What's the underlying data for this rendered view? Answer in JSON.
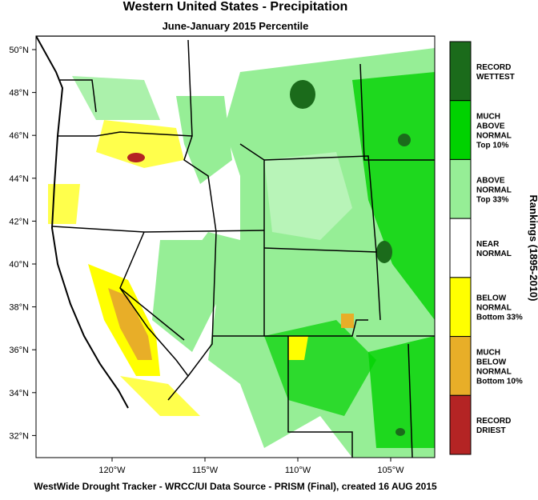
{
  "map": {
    "title": "Western United States - Precipitation",
    "subtitle": "June-January 2015 Percentile",
    "lat_labels": [
      "50°N",
      "48°N",
      "46°N",
      "44°N",
      "42°N",
      "40°N",
      "38°N",
      "36°N",
      "34°N",
      "32°N"
    ],
    "lon_labels": [
      "120°W",
      "115°W",
      "110°W",
      "105°W"
    ],
    "legend": {
      "title": "Rankings (1895-2010)",
      "items": [
        {
          "lines": [
            "RECORD",
            "WETTEST"
          ],
          "color": "#1b6b1b"
        },
        {
          "lines": [
            "MUCH",
            "ABOVE",
            "NORMAL",
            "Top 10%"
          ],
          "color": "#00d200"
        },
        {
          "lines": [
            "ABOVE",
            "NORMAL",
            "Top 33%"
          ],
          "color": "#96ee96"
        },
        {
          "lines": [
            "NEAR",
            "NORMAL"
          ],
          "color": "#ffffff"
        },
        {
          "lines": [
            "BELOW",
            "NORMAL",
            "Bottom 33%"
          ],
          "color": "#ffff00"
        },
        {
          "lines": [
            "MUCH",
            "BELOW",
            "NORMAL",
            "Bottom 10%"
          ],
          "color": "#e8ae28"
        },
        {
          "lines": [
            "RECORD",
            "DRIEST"
          ],
          "color": "#b42424"
        }
      ]
    },
    "footer": "WestWide Drought Tracker - WRCC/UI  Data Source - PRISM (Final), created 16 AUG 2015"
  }
}
